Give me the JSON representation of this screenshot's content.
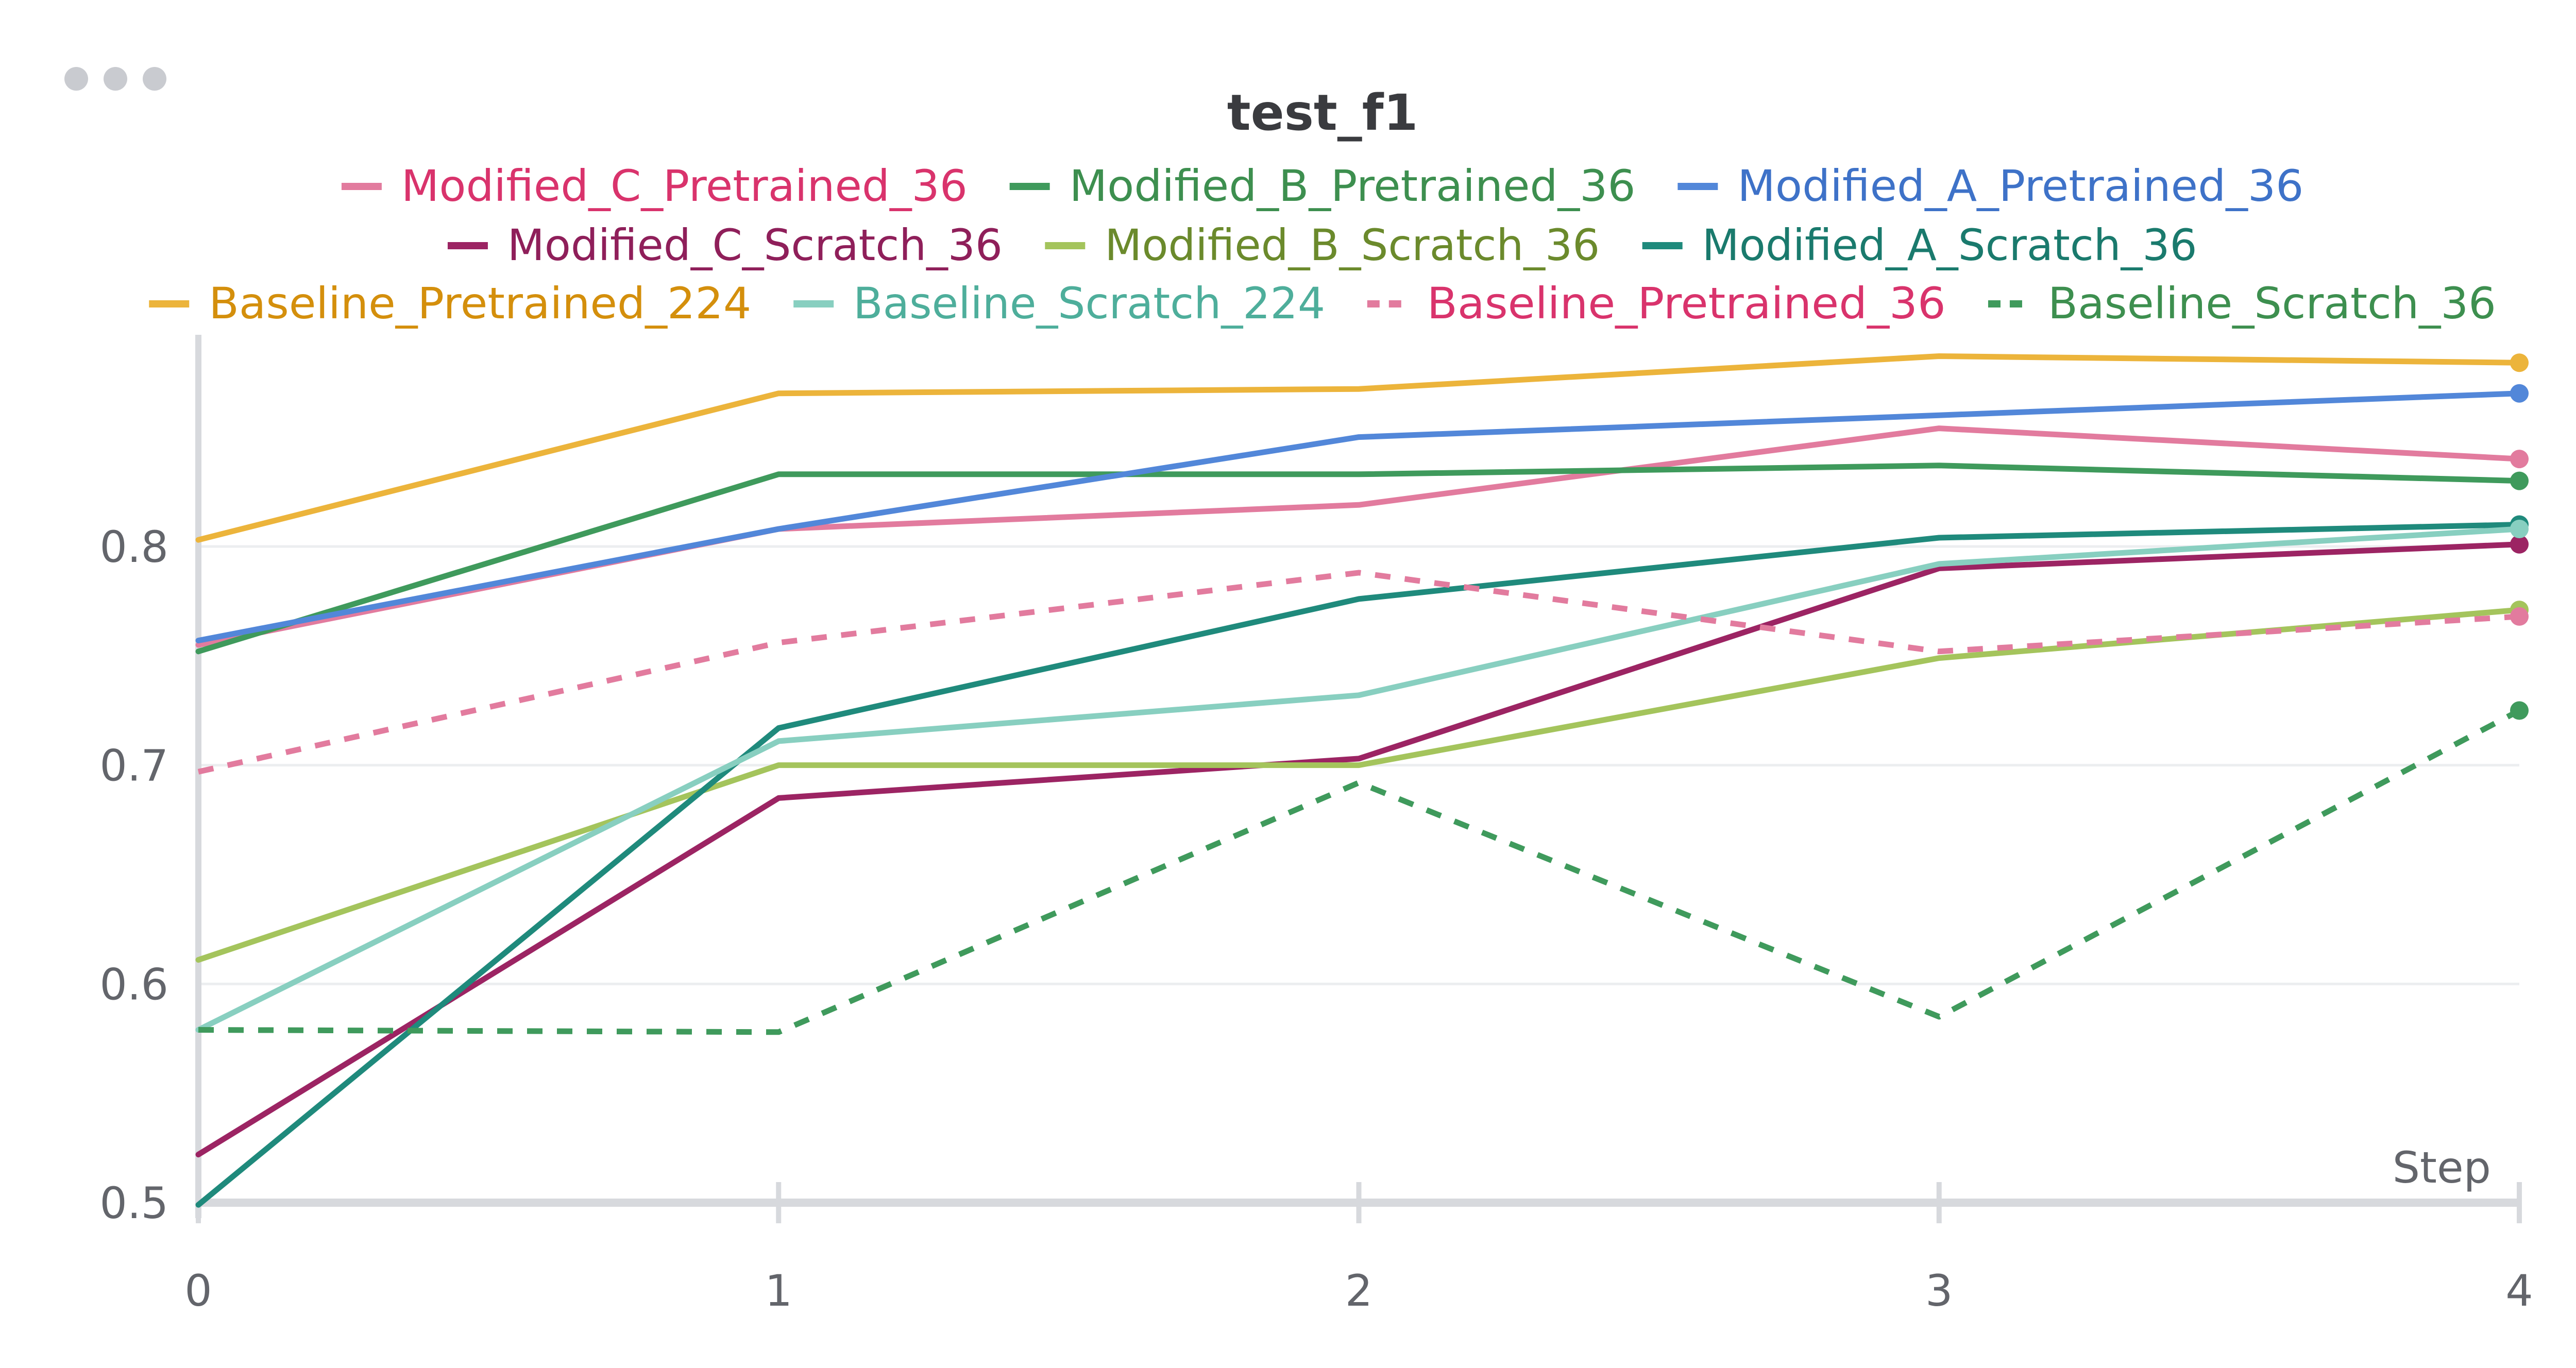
{
  "panel": {
    "menu_icon": "more-horizontal-icon"
  },
  "colors": {
    "axis": "#d7d9dd",
    "grid": "#eceef0",
    "tick_text": "#63656b",
    "title_text": "#3a3b3f"
  },
  "chart_data": {
    "type": "line",
    "title": "test_f1",
    "xlabel": "Step",
    "ylabel": "",
    "x": [
      0,
      1,
      2,
      3,
      4
    ],
    "xlim": [
      0,
      4
    ],
    "ylim": [
      0.5,
      0.885
    ],
    "xticks": [
      "0",
      "1",
      "2",
      "3",
      "4"
    ],
    "yticks": [
      {
        "value": 0.5,
        "label": "0.5"
      },
      {
        "value": 0.6,
        "label": "0.6"
      },
      {
        "value": 0.7,
        "label": "0.7"
      },
      {
        "value": 0.8,
        "label": "0.8"
      }
    ],
    "grid": true,
    "legend_position": "top-center",
    "end_markers": true,
    "series": [
      {
        "name": "Modified_C_Pretrained_36",
        "color": "#e27b9e",
        "label_color": "#d9336c",
        "dash": false,
        "values": [
          0.755,
          0.808,
          0.819,
          0.854,
          0.84
        ]
      },
      {
        "name": "Modified_B_Pretrained_36",
        "color": "#3f9a5c",
        "label_color": "#3d8f4f",
        "dash": false,
        "values": [
          0.752,
          0.833,
          0.833,
          0.837,
          0.83
        ]
      },
      {
        "name": "Modified_A_Pretrained_36",
        "color": "#5287d9",
        "label_color": "#3e72c8",
        "dash": false,
        "values": [
          0.757,
          0.808,
          0.85,
          0.86,
          0.87
        ]
      },
      {
        "name": "Modified_C_Scratch_36",
        "color": "#9c2463",
        "label_color": "#8f1f5a",
        "dash": false,
        "values": [
          0.522,
          0.685,
          0.703,
          0.79,
          0.801
        ]
      },
      {
        "name": "Modified_B_Scratch_36",
        "color": "#a4c45c",
        "label_color": "#6b8a2c",
        "dash": false,
        "values": [
          0.611,
          0.7,
          0.7,
          0.749,
          0.771
        ]
      },
      {
        "name": "Modified_A_Scratch_36",
        "color": "#1f8a7c",
        "label_color": "#1a7a6d",
        "dash": false,
        "values": [
          0.499,
          0.717,
          0.776,
          0.804,
          0.81
        ]
      },
      {
        "name": "Baseline_Pretrained_224",
        "color": "#ecb43b",
        "label_color": "#d48f0c",
        "dash": false,
        "values": [
          0.803,
          0.87,
          0.872,
          0.887,
          0.884
        ]
      },
      {
        "name": "Baseline_Scratch_224",
        "color": "#88cfc0",
        "label_color": "#4eae9b",
        "dash": false,
        "values": [
          0.579,
          0.711,
          0.732,
          0.792,
          0.808
        ]
      },
      {
        "name": "Baseline_Pretrained_36",
        "color": "#e27b9e",
        "label_color": "#d9336c",
        "dash": true,
        "values": [
          0.697,
          0.756,
          0.788,
          0.752,
          0.768
        ]
      },
      {
        "name": "Baseline_Scratch_36",
        "color": "#3f9a5c",
        "label_color": "#3d8f4f",
        "dash": true,
        "values": [
          0.579,
          0.578,
          0.692,
          0.585,
          0.725
        ]
      }
    ]
  }
}
